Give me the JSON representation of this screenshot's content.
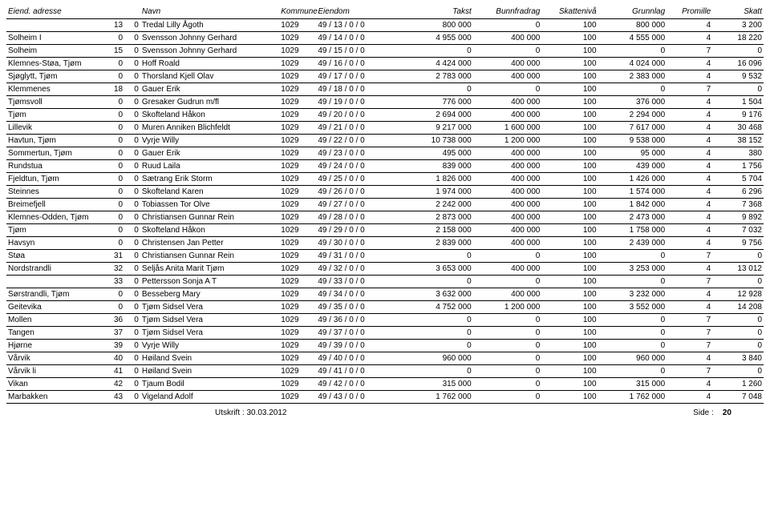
{
  "header": {
    "adresse": "Eiend. adresse",
    "navn": "Navn",
    "kommune": "Kommune",
    "eiendom": "Eiendom",
    "takst": "Takst",
    "bunnfradrag": "Bunnfradrag",
    "skatteniva": "Skattenivå",
    "grunnlag": "Grunnlag",
    "promille": "Promille",
    "skatt": "Skatt"
  },
  "rows": [
    {
      "adresse": "",
      "g1": "13",
      "g2": "0",
      "navn": "Tredal Lilly Ågoth",
      "kommune": "1029",
      "eiendom": "49 / 13 / 0 / 0",
      "takst": "800 000",
      "bunn": "0",
      "sn": "100",
      "grunn": "800 000",
      "prom": "4",
      "skatt": "3 200"
    },
    {
      "adresse": "Solheim I",
      "g1": "0",
      "g2": "0",
      "navn": "Svensson Johnny Gerhard",
      "kommune": "1029",
      "eiendom": "49 / 14 / 0 / 0",
      "takst": "4 955 000",
      "bunn": "400 000",
      "sn": "100",
      "grunn": "4 555 000",
      "prom": "4",
      "skatt": "18 220"
    },
    {
      "adresse": "Solheim",
      "g1": "15",
      "g2": "0",
      "navn": "Svensson Johnny Gerhard",
      "kommune": "1029",
      "eiendom": "49 / 15 / 0 / 0",
      "takst": "0",
      "bunn": "0",
      "sn": "100",
      "grunn": "0",
      "prom": "7",
      "skatt": "0"
    },
    {
      "adresse": "Klemnes-Støa, Tjøm",
      "g1": "0",
      "g2": "0",
      "navn": "Hoff Roald",
      "kommune": "1029",
      "eiendom": "49 / 16 / 0 / 0",
      "takst": "4 424 000",
      "bunn": "400 000",
      "sn": "100",
      "grunn": "4 024 000",
      "prom": "4",
      "skatt": "16 096"
    },
    {
      "adresse": "Sjøglytt, Tjøm",
      "g1": "0",
      "g2": "0",
      "navn": "Thorsland Kjell Olav",
      "kommune": "1029",
      "eiendom": "49 / 17 / 0 / 0",
      "takst": "2 783 000",
      "bunn": "400 000",
      "sn": "100",
      "grunn": "2 383 000",
      "prom": "4",
      "skatt": "9 532"
    },
    {
      "adresse": "Klemmenes",
      "g1": "18",
      "g2": "0",
      "navn": "Gauer Erik",
      "kommune": "1029",
      "eiendom": "49 / 18 / 0 / 0",
      "takst": "0",
      "bunn": "0",
      "sn": "100",
      "grunn": "0",
      "prom": "7",
      "skatt": "0"
    },
    {
      "adresse": "Tjømsvoll",
      "g1": "0",
      "g2": "0",
      "navn": "Gresaker Gudrun m/fl",
      "kommune": "1029",
      "eiendom": "49 / 19 / 0 / 0",
      "takst": "776 000",
      "bunn": "400 000",
      "sn": "100",
      "grunn": "376 000",
      "prom": "4",
      "skatt": "1 504"
    },
    {
      "adresse": "Tjøm",
      "g1": "0",
      "g2": "0",
      "navn": "Skofteland Håkon",
      "kommune": "1029",
      "eiendom": "49 / 20 / 0 / 0",
      "takst": "2 694 000",
      "bunn": "400 000",
      "sn": "100",
      "grunn": "2 294 000",
      "prom": "4",
      "skatt": "9 176"
    },
    {
      "adresse": "Lillevik",
      "g1": "0",
      "g2": "0",
      "navn": "Muren Anniken Blichfeldt",
      "kommune": "1029",
      "eiendom": "49 / 21 / 0 / 0",
      "takst": "9 217 000",
      "bunn": "1 600 000",
      "sn": "100",
      "grunn": "7 617 000",
      "prom": "4",
      "skatt": "30 468"
    },
    {
      "adresse": "Havtun, Tjøm",
      "g1": "0",
      "g2": "0",
      "navn": "Vyrje Willy",
      "kommune": "1029",
      "eiendom": "49 / 22 / 0 / 0",
      "takst": "10 738 000",
      "bunn": "1 200 000",
      "sn": "100",
      "grunn": "9 538 000",
      "prom": "4",
      "skatt": "38 152"
    },
    {
      "adresse": "Sommertun, Tjøm",
      "g1": "0",
      "g2": "0",
      "navn": "Gauer Erik",
      "kommune": "1029",
      "eiendom": "49 / 23 / 0 / 0",
      "takst": "495 000",
      "bunn": "400 000",
      "sn": "100",
      "grunn": "95 000",
      "prom": "4",
      "skatt": "380"
    },
    {
      "adresse": "Rundstua",
      "g1": "0",
      "g2": "0",
      "navn": "Ruud Laila",
      "kommune": "1029",
      "eiendom": "49 / 24 / 0 / 0",
      "takst": "839 000",
      "bunn": "400 000",
      "sn": "100",
      "grunn": "439 000",
      "prom": "4",
      "skatt": "1 756"
    },
    {
      "adresse": "Fjeldtun, Tjøm",
      "g1": "0",
      "g2": "0",
      "navn": "Sætrang Erik Storm",
      "kommune": "1029",
      "eiendom": "49 / 25 / 0 / 0",
      "takst": "1 826 000",
      "bunn": "400 000",
      "sn": "100",
      "grunn": "1 426 000",
      "prom": "4",
      "skatt": "5 704"
    },
    {
      "adresse": "Steinnes",
      "g1": "0",
      "g2": "0",
      "navn": "Skofteland Karen",
      "kommune": "1029",
      "eiendom": "49 / 26 / 0 / 0",
      "takst": "1 974 000",
      "bunn": "400 000",
      "sn": "100",
      "grunn": "1 574 000",
      "prom": "4",
      "skatt": "6 296"
    },
    {
      "adresse": "Breimefjell",
      "g1": "0",
      "g2": "0",
      "navn": "Tobiassen Tor Olve",
      "kommune": "1029",
      "eiendom": "49 / 27 / 0 / 0",
      "takst": "2 242 000",
      "bunn": "400 000",
      "sn": "100",
      "grunn": "1 842 000",
      "prom": "4",
      "skatt": "7 368"
    },
    {
      "adresse": "Klemnes-Odden, Tjøm",
      "g1": "0",
      "g2": "0",
      "navn": "Christiansen Gunnar Rein",
      "kommune": "1029",
      "eiendom": "49 / 28 / 0 / 0",
      "takst": "2 873 000",
      "bunn": "400 000",
      "sn": "100",
      "grunn": "2 473 000",
      "prom": "4",
      "skatt": "9 892"
    },
    {
      "adresse": "Tjøm",
      "g1": "0",
      "g2": "0",
      "navn": "Skofteland Håkon",
      "kommune": "1029",
      "eiendom": "49 / 29 / 0 / 0",
      "takst": "2 158 000",
      "bunn": "400 000",
      "sn": "100",
      "grunn": "1 758 000",
      "prom": "4",
      "skatt": "7 032"
    },
    {
      "adresse": "Havsyn",
      "g1": "0",
      "g2": "0",
      "navn": "Christensen Jan Petter",
      "kommune": "1029",
      "eiendom": "49 / 30 / 0 / 0",
      "takst": "2 839 000",
      "bunn": "400 000",
      "sn": "100",
      "grunn": "2 439 000",
      "prom": "4",
      "skatt": "9 756"
    },
    {
      "adresse": "Støa",
      "g1": "31",
      "g2": "0",
      "navn": "Christiansen Gunnar Rein",
      "kommune": "1029",
      "eiendom": "49 / 31 / 0 / 0",
      "takst": "0",
      "bunn": "0",
      "sn": "100",
      "grunn": "0",
      "prom": "7",
      "skatt": "0"
    },
    {
      "adresse": "Nordstrandli",
      "g1": "32",
      "g2": "0",
      "navn": "Seljås Anita Marit Tjøm",
      "kommune": "1029",
      "eiendom": "49 / 32 / 0 / 0",
      "takst": "3 653 000",
      "bunn": "400 000",
      "sn": "100",
      "grunn": "3 253 000",
      "prom": "4",
      "skatt": "13 012"
    },
    {
      "adresse": "",
      "g1": "33",
      "g2": "0",
      "navn": "Pettersson Sonja A T",
      "kommune": "1029",
      "eiendom": "49 / 33 / 0 / 0",
      "takst": "0",
      "bunn": "0",
      "sn": "100",
      "grunn": "0",
      "prom": "7",
      "skatt": "0"
    },
    {
      "adresse": "Sørstrandli, Tjøm",
      "g1": "0",
      "g2": "0",
      "navn": "Besseberg Mary",
      "kommune": "1029",
      "eiendom": "49 / 34 / 0 / 0",
      "takst": "3 632 000",
      "bunn": "400 000",
      "sn": "100",
      "grunn": "3 232 000",
      "prom": "4",
      "skatt": "12 928"
    },
    {
      "adresse": "Geitevika",
      "g1": "0",
      "g2": "0",
      "navn": "Tjøm Sidsel Vera",
      "kommune": "1029",
      "eiendom": "49 / 35 / 0 / 0",
      "takst": "4 752 000",
      "bunn": "1 200 000",
      "sn": "100",
      "grunn": "3 552 000",
      "prom": "4",
      "skatt": "14 208"
    },
    {
      "adresse": "Mollen",
      "g1": "36",
      "g2": "0",
      "navn": "Tjøm Sidsel Vera",
      "kommune": "1029",
      "eiendom": "49 / 36 / 0 / 0",
      "takst": "0",
      "bunn": "0",
      "sn": "100",
      "grunn": "0",
      "prom": "7",
      "skatt": "0"
    },
    {
      "adresse": "Tangen",
      "g1": "37",
      "g2": "0",
      "navn": "Tjøm Sidsel Vera",
      "kommune": "1029",
      "eiendom": "49 / 37 / 0 / 0",
      "takst": "0",
      "bunn": "0",
      "sn": "100",
      "grunn": "0",
      "prom": "7",
      "skatt": "0"
    },
    {
      "adresse": "Hjørne",
      "g1": "39",
      "g2": "0",
      "navn": "Vyrje Willy",
      "kommune": "1029",
      "eiendom": "49 / 39 / 0 / 0",
      "takst": "0",
      "bunn": "0",
      "sn": "100",
      "grunn": "0",
      "prom": "7",
      "skatt": "0"
    },
    {
      "adresse": "Vårvik",
      "g1": "40",
      "g2": "0",
      "navn": "Høiland Svein",
      "kommune": "1029",
      "eiendom": "49 / 40 / 0 / 0",
      "takst": "960 000",
      "bunn": "0",
      "sn": "100",
      "grunn": "960 000",
      "prom": "4",
      "skatt": "3 840"
    },
    {
      "adresse": "Vårvik li",
      "g1": "41",
      "g2": "0",
      "navn": "Høiland Svein",
      "kommune": "1029",
      "eiendom": "49 / 41 / 0 / 0",
      "takst": "0",
      "bunn": "0",
      "sn": "100",
      "grunn": "0",
      "prom": "7",
      "skatt": "0"
    },
    {
      "adresse": "Vikan",
      "g1": "42",
      "g2": "0",
      "navn": "Tjaum Bodil",
      "kommune": "1029",
      "eiendom": "49 / 42 / 0 / 0",
      "takst": "315 000",
      "bunn": "0",
      "sn": "100",
      "grunn": "315 000",
      "prom": "4",
      "skatt": "1 260"
    },
    {
      "adresse": "Marbakken",
      "g1": "43",
      "g2": "0",
      "navn": "Vigeland Adolf",
      "kommune": "1029",
      "eiendom": "49 / 43 / 0 / 0",
      "takst": "1 762 000",
      "bunn": "0",
      "sn": "100",
      "grunn": "1 762 000",
      "prom": "4",
      "skatt": "7 048"
    }
  ],
  "footer": {
    "left": "Utskrift : 30.03.2012",
    "rightLabel": "Side :",
    "pageNum": "20"
  }
}
